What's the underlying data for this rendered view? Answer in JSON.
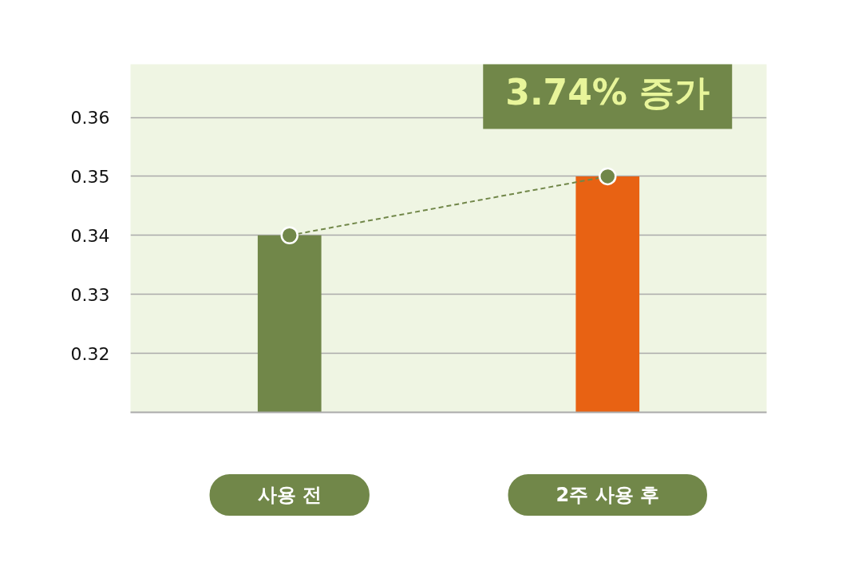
{
  "chart_data": {
    "type": "bar",
    "categories": [
      "사용 전",
      "2주 사용 후"
    ],
    "ylim": [
      0.31,
      0.369
    ],
    "yticks": [
      0.32,
      0.33,
      0.34,
      0.35,
      0.36
    ],
    "grid": "y",
    "series": [
      {
        "values": [
          0.34,
          0.35
        ],
        "colors": [
          "#718749",
          "#e86213"
        ]
      },
      {
        "type": "line",
        "color": "#718749",
        "values": [
          0.34,
          0.35
        ],
        "marker": "circle",
        "line_style": "dashed"
      }
    ],
    "annotations": [
      {
        "text": "3.74% 증가",
        "x": "2주 사용 후",
        "y": 0.35
      }
    ]
  }
}
